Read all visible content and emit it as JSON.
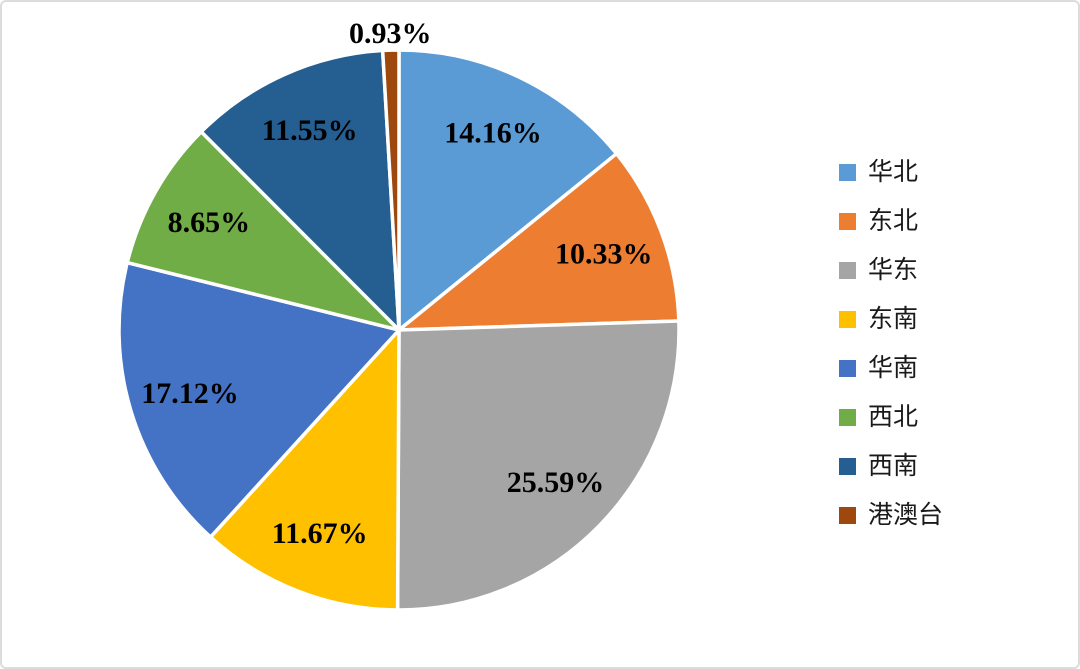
{
  "chart_data": {
    "type": "pie",
    "title": "",
    "direction": "clockwise",
    "start_angle_deg": 0,
    "data_labels": "percent",
    "label_color": "#000000",
    "legend_position": "right",
    "background_color": "#ffffff",
    "frame_border_color": "#dcdcdc",
    "slices": [
      {
        "label": "华北",
        "value": 14.16,
        "display": "14.16%",
        "color": "#5B9BD5"
      },
      {
        "label": "东北",
        "value": 10.33,
        "display": "10.33%",
        "color": "#ED7D31"
      },
      {
        "label": "华东",
        "value": 25.59,
        "display": "25.59%",
        "color": "#A5A5A5"
      },
      {
        "label": "东南",
        "value": 11.67,
        "display": "11.67%",
        "color": "#FFC000"
      },
      {
        "label": "华南",
        "value": 17.12,
        "display": "17.12%",
        "color": "#4472C4"
      },
      {
        "label": "西北",
        "value": 8.65,
        "display": "8.65%",
        "color": "#70AD47"
      },
      {
        "label": "西南",
        "value": 11.55,
        "display": "11.55%",
        "color": "#255E91"
      },
      {
        "label": "港澳台",
        "value": 0.93,
        "display": "0.93%",
        "color": "#9E480E"
      }
    ]
  }
}
